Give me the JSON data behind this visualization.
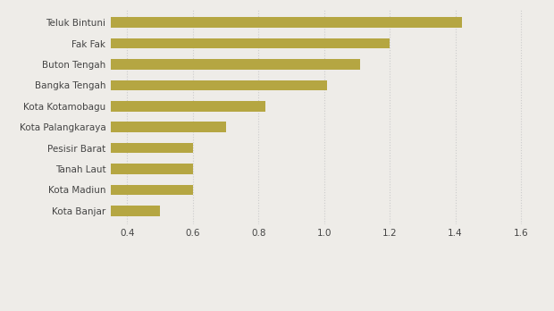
{
  "categories": [
    "Kota Banjar",
    "Kota Madiun",
    "Tanah Laut",
    "Pesisir Barat",
    "Kota Palangkaraya",
    "Kota Kotamobagu",
    "Bangka Tengah",
    "Buton Tengah",
    "Fak Fak",
    "Teluk Bintuni"
  ],
  "values": [
    0.5,
    0.6,
    0.6,
    0.6,
    0.7,
    0.82,
    1.01,
    1.11,
    1.2,
    1.42
  ],
  "bar_color": "#b5a642",
  "background_color": "#eeece8",
  "xlim": [
    0.35,
    1.65
  ],
  "xticks": [
    0.4,
    0.6,
    0.8,
    1.0,
    1.2,
    1.4,
    1.6
  ],
  "grid_color": "#cccccc",
  "bar_height": 0.5,
  "figsize": [
    6.2,
    3.48
  ],
  "dpi": 100
}
